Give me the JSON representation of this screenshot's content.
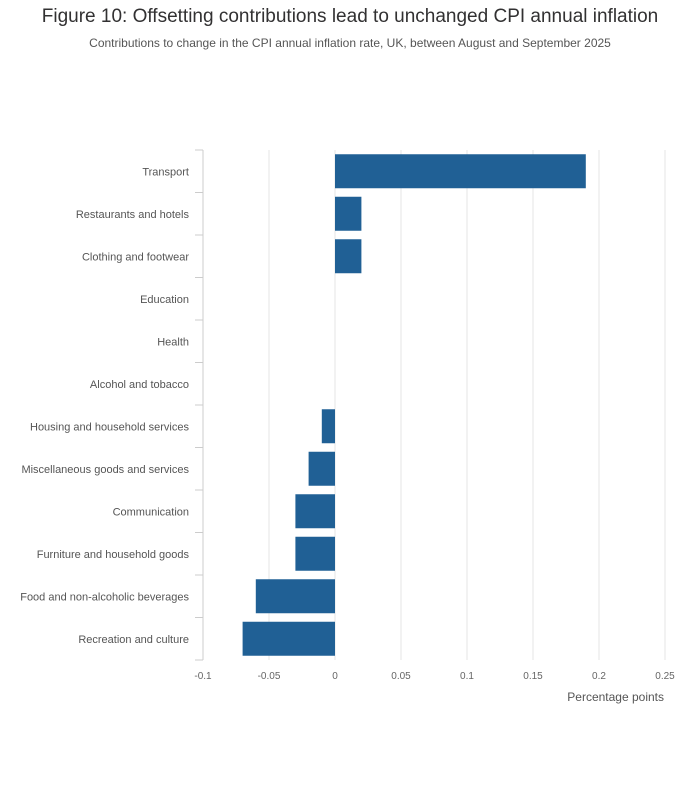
{
  "title": "Figure 10: Offsetting contributions lead to unchanged CPI annual inflation",
  "subtitle": "Contributions to change in the CPI annual inflation rate, UK, between August and September 2025",
  "chart_data": {
    "type": "bar",
    "orientation": "horizontal",
    "categories": [
      "Transport",
      "Restaurants and hotels",
      "Clothing and footwear",
      "Education",
      "Health",
      "Alcohol and tobacco",
      "Housing and household services",
      "Miscellaneous goods and services",
      "Communication",
      "Furniture and household goods",
      "Food and non-alcoholic beverages",
      "Recreation and culture"
    ],
    "values": [
      0.19,
      0.02,
      0.02,
      0,
      0,
      0,
      -0.01,
      -0.02,
      -0.03,
      -0.03,
      -0.06,
      -0.07
    ],
    "xlabel": "Percentage points",
    "ylabel": "",
    "xlim": [
      -0.1,
      0.25
    ],
    "xticks": [
      "-0.1",
      "-0.05",
      "0",
      "0.05",
      "0.1",
      "0.15",
      "0.2",
      "0.25"
    ],
    "bar_color": "#206095",
    "grid": true
  }
}
